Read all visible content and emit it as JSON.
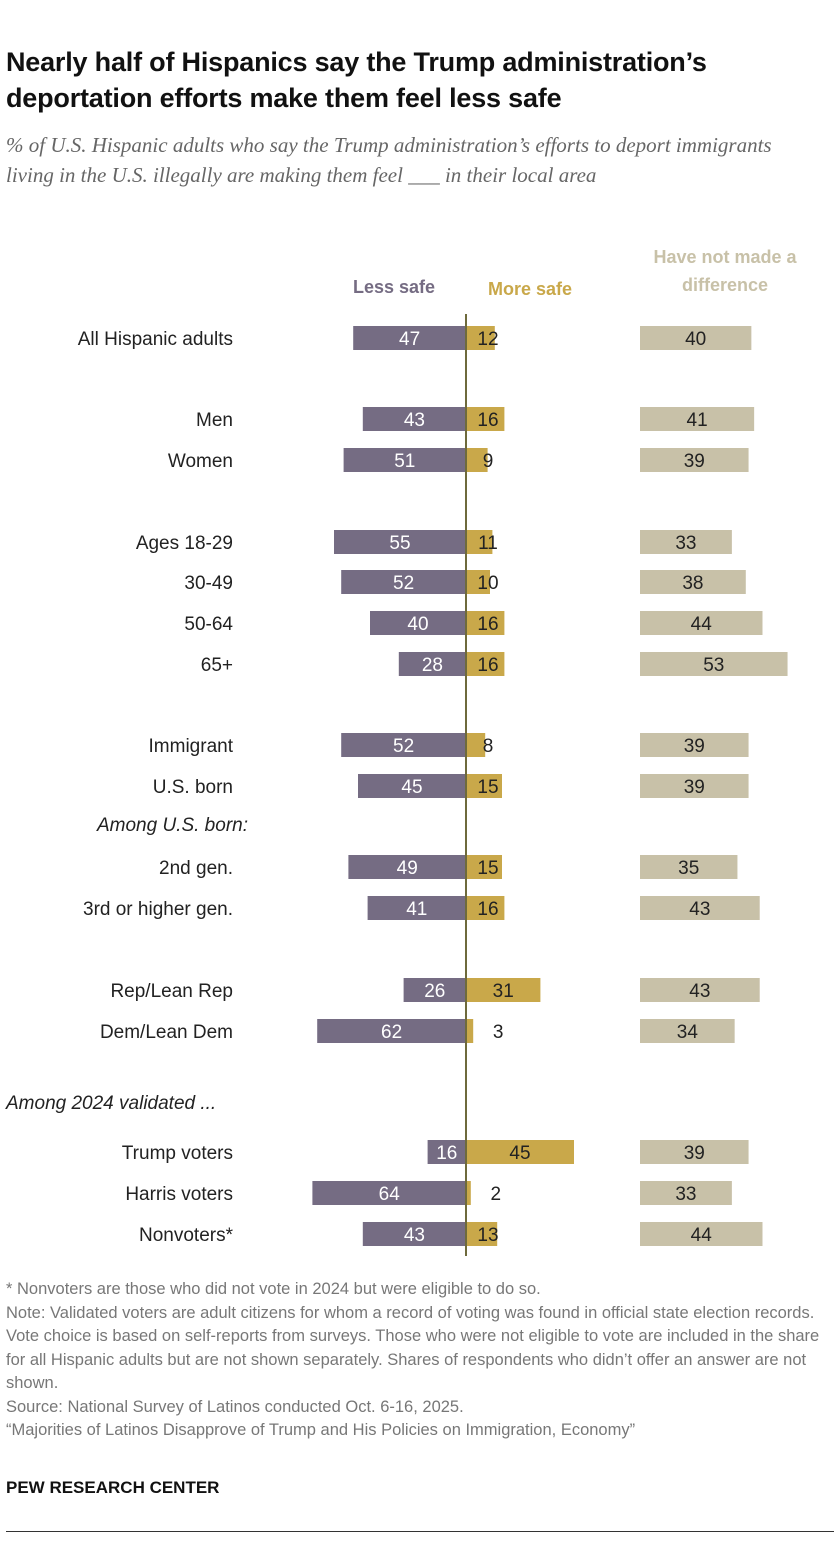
{
  "title": "Nearly half of Hispanics say the Trump administration’s deportation efforts make them feel less safe",
  "subtitle": "% of U.S. Hispanic adults who say the Trump administration’s efforts to deport immigrants living in the U.S. illegally are making them feel ___ in their local area",
  "colors": {
    "less_safe": "#756C83",
    "more_safe": "#C9A84A",
    "no_difference": "#C8C1A8",
    "less_safe_header": "#756C83",
    "more_safe_header": "#C9A84A",
    "no_difference_header": "#C8C1A8",
    "center_axis": "#6E6A3C"
  },
  "chart_data": {
    "type": "bar",
    "orientation": "horizontal",
    "title": "Nearly half of Hispanics say the Trump administration’s deportation efforts make them feel less safe",
    "series": [
      {
        "name": "Less safe",
        "key": "less_safe",
        "direction": "left",
        "values": [
          47,
          43,
          51,
          55,
          52,
          40,
          28,
          52,
          45,
          49,
          41,
          26,
          62,
          16,
          64,
          43
        ]
      },
      {
        "name": "More safe",
        "key": "more_safe",
        "direction": "right",
        "values": [
          12,
          16,
          9,
          11,
          10,
          16,
          16,
          8,
          15,
          15,
          16,
          31,
          3,
          45,
          2,
          13
        ]
      },
      {
        "name": "Have not made a difference",
        "key": "no_difference",
        "direction": "separate",
        "values": [
          40,
          41,
          39,
          33,
          38,
          44,
          53,
          39,
          39,
          35,
          43,
          43,
          34,
          39,
          33,
          44
        ]
      }
    ],
    "rows": [
      {
        "label": "All Hispanic adults",
        "less_safe": 47,
        "more_safe": 12,
        "no_difference": 40
      },
      {
        "label": "Men",
        "less_safe": 43,
        "more_safe": 16,
        "no_difference": 41
      },
      {
        "label": "Women",
        "less_safe": 51,
        "more_safe": 9,
        "no_difference": 39
      },
      {
        "label": "Ages 18-29",
        "less_safe": 55,
        "more_safe": 11,
        "no_difference": 33
      },
      {
        "label": "30-49",
        "less_safe": 52,
        "more_safe": 10,
        "no_difference": 38
      },
      {
        "label": "50-64",
        "less_safe": 40,
        "more_safe": 16,
        "no_difference": 44
      },
      {
        "label": "65+",
        "less_safe": 28,
        "more_safe": 16,
        "no_difference": 53
      },
      {
        "label": "Immigrant",
        "less_safe": 52,
        "more_safe": 8,
        "no_difference": 39
      },
      {
        "label": "U.S. born",
        "less_safe": 45,
        "more_safe": 15,
        "no_difference": 39
      },
      {
        "label": "Among U.S. born:",
        "is_header": true
      },
      {
        "label": "2nd gen.",
        "less_safe": 49,
        "more_safe": 15,
        "no_difference": 35
      },
      {
        "label": "3rd or higher gen.",
        "less_safe": 41,
        "more_safe": 16,
        "no_difference": 43
      },
      {
        "label": "Rep/Lean Rep",
        "less_safe": 26,
        "more_safe": 31,
        "no_difference": 43
      },
      {
        "label": "Dem/Lean Dem",
        "less_safe": 62,
        "more_safe": 3,
        "no_difference": 34
      },
      {
        "label": "Among 2024 validated ...",
        "is_header": true,
        "flush_left": true
      },
      {
        "label": "Trump voters",
        "less_safe": 16,
        "more_safe": 45,
        "no_difference": 39
      },
      {
        "label": "Harris voters",
        "less_safe": 64,
        "more_safe": 2,
        "no_difference": 33
      },
      {
        "label": "Nonvoters*",
        "less_safe": 43,
        "more_safe": 13,
        "no_difference": 44
      }
    ],
    "headers": {
      "less_safe": "Less safe",
      "more_safe": "More safe",
      "no_difference": [
        "Have not made a",
        "difference"
      ]
    },
    "xlim": [
      0,
      100
    ]
  },
  "notes": {
    "asterisk": "* Nonvoters are those who did not vote in 2024 but were eligible to do so.",
    "note": "Note: Validated voters are adult citizens for whom a record of voting was found in official state election records. Vote choice is based on self-reports from surveys. Those who were not eligible to vote are included in the share for all Hispanic adults but are not shown separately. Shares of respondents who didn’t offer an answer are not shown.",
    "source": "Source: National Survey of Latinos conducted Oct. 6-16, 2025.",
    "report": "“Majorities of Latinos Disapprove of Trump and His Policies on Immigration, Economy”"
  },
  "brand": "PEW RESEARCH CENTER"
}
